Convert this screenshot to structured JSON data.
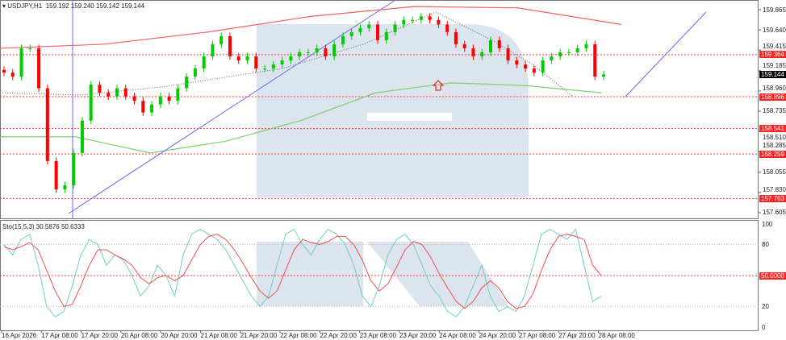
{
  "header": {
    "symbol": "USDJPY,H1",
    "ohlc": "159.192 159.240 159.142 159.144"
  },
  "indicator": {
    "label": "Sto(15,5,3) 30.5876 50.6333"
  },
  "colors": {
    "bull": "#00cc00",
    "bear": "#ff0000",
    "ma_red": "#f46060",
    "ma_green": "#7fcf70",
    "trend": "#6a6af0",
    "level": "#ff3333"
  },
  "chart_data": [
    {
      "type": "candlestick",
      "ylim": [
        157.55,
        159.92
      ],
      "y_ticks": [
        "159.865",
        "159.640",
        "159.415",
        "159.185",
        "158.960",
        "158.735",
        "158.510",
        "158.285",
        "158.055",
        "157.830",
        "157.605"
      ],
      "x_ticks": [
        "16 Apr 2026",
        "17 Apr 08:00",
        "17 Apr 20:00",
        "20 Apr 08:00",
        "20 Apr 20:00",
        "21 Apr 08:00",
        "21 Apr 20:00",
        "22 Apr 08:00",
        "22 Apr 20:00",
        "23 Apr 08:00",
        "23 Apr 20:00",
        "24 Apr 08:00",
        "24 Apr 20:00",
        "27 Apr 08:00",
        "27 Apr 20:00",
        "28 Apr 08:00"
      ],
      "closes": [
        159.165,
        159.12,
        159.435,
        159.435,
        158.99,
        158.18,
        157.865,
        157.91,
        158.27,
        158.63,
        159.03,
        158.94,
        158.9,
        158.99,
        158.9,
        158.85,
        158.72,
        158.81,
        158.9,
        158.85,
        158.99,
        159.12,
        159.21,
        159.345,
        159.48,
        159.57,
        159.345,
        159.3,
        159.345,
        159.21,
        159.21,
        159.255,
        159.3,
        159.345,
        159.39,
        159.39,
        159.435,
        159.345,
        159.48,
        159.57,
        159.615,
        159.66,
        159.7,
        159.525,
        159.615,
        159.7,
        159.75,
        159.75,
        159.79,
        159.75,
        159.7,
        159.615,
        159.48,
        159.435,
        159.345,
        159.39,
        159.525,
        159.435,
        159.3,
        159.255,
        159.21,
        159.165,
        159.3,
        159.345,
        159.39,
        159.39,
        159.435,
        159.48,
        159.12,
        159.144
      ],
      "ma_red": [
        159.435,
        159.48,
        159.615,
        159.79,
        159.9,
        159.885,
        159.7
      ],
      "ma_green": [
        158.45,
        158.45,
        158.27,
        158.4,
        158.63,
        158.94,
        159.05,
        159.02,
        158.94
      ],
      "levels": [
        {
          "value": 159.364,
          "label": "159.364"
        },
        {
          "value": 158.896,
          "label": "158.896"
        },
        {
          "value": 158.541,
          "label": "158.541"
        },
        {
          "value": 158.259,
          "label": "158.259"
        },
        {
          "value": 157.763,
          "label": "157.763"
        }
      ],
      "current": {
        "value": 159.144,
        "label": "159.144"
      }
    },
    {
      "type": "line",
      "ylim": [
        0,
        100
      ],
      "y_ticks": [
        "100",
        "80",
        "20",
        "0"
      ],
      "level": {
        "value": 50,
        "label": "50.0000"
      },
      "k": [
        80,
        70,
        85,
        90,
        60,
        20,
        10,
        15,
        40,
        70,
        85,
        80,
        60,
        70,
        65,
        50,
        30,
        40,
        60,
        50,
        30,
        70,
        90,
        95,
        90,
        85,
        75,
        60,
        45,
        30,
        20,
        30,
        60,
        90,
        95,
        80,
        70,
        85,
        95,
        90,
        80,
        60,
        30,
        20,
        40,
        70,
        85,
        90,
        80,
        60,
        40,
        30,
        15,
        10,
        20,
        40,
        60,
        30,
        15,
        20,
        15,
        30,
        60,
        90,
        95,
        90,
        85,
        95,
        60,
        25,
        30
      ],
      "d": [
        78,
        75,
        78,
        82,
        75,
        55,
        35,
        20,
        22,
        40,
        60,
        75,
        75,
        70,
        66,
        60,
        48,
        42,
        48,
        50,
        45,
        50,
        65,
        80,
        88,
        90,
        85,
        75,
        62,
        48,
        35,
        28,
        35,
        55,
        75,
        85,
        82,
        80,
        83,
        88,
        88,
        80,
        65,
        45,
        35,
        42,
        58,
        75,
        83,
        80,
        68,
        52,
        38,
        25,
        18,
        25,
        38,
        45,
        38,
        25,
        18,
        20,
        32,
        55,
        75,
        88,
        90,
        88,
        85,
        60,
        50
      ]
    }
  ]
}
